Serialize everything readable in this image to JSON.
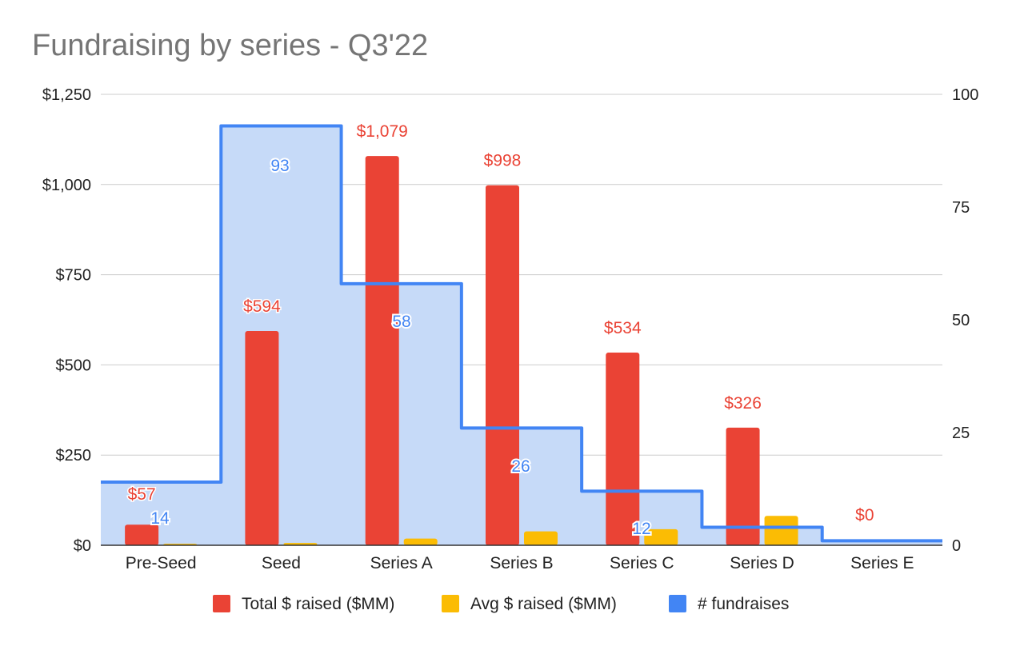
{
  "chart_data": {
    "type": "bar",
    "title": "Fundraising by series - Q3'22",
    "categories": [
      "Pre-Seed",
      "Seed",
      "Series A",
      "Series B",
      "Series C",
      "Series D",
      "Series E"
    ],
    "series": [
      {
        "name": "Total $ raised ($MM)",
        "type": "bar",
        "axis": "left",
        "color": "#EA4335",
        "values": [
          57,
          594,
          1079,
          998,
          534,
          326,
          0
        ],
        "data_labels": [
          "$57",
          "$594",
          "$1,079",
          "$998",
          "$534",
          "$326",
          "$0"
        ]
      },
      {
        "name": "Avg $ raised ($MM)",
        "type": "bar",
        "axis": "left",
        "color": "#FBBC04",
        "values": [
          4.1,
          6.4,
          18.6,
          38.4,
          44.5,
          81.5,
          0
        ]
      },
      {
        "name": "# fundraises",
        "type": "stepped-area",
        "axis": "right",
        "color": "#4285F4",
        "fill": "#C6DAF8",
        "values": [
          14,
          93,
          58,
          26,
          12,
          4,
          1
        ],
        "data_labels": [
          "14",
          "93",
          "58",
          "26",
          "12",
          "",
          ""
        ]
      }
    ],
    "left_axis": {
      "min": 0,
      "max": 1250,
      "ticks": [
        0,
        250,
        500,
        750,
        1000,
        1250
      ],
      "tick_labels": [
        "$0",
        "$250",
        "$500",
        "$750",
        "$1,000",
        "$1,250"
      ]
    },
    "right_axis": {
      "min": 0,
      "max": 100,
      "ticks": [
        0,
        25,
        50,
        75,
        100
      ],
      "tick_labels": [
        "0",
        "25",
        "50",
        "75",
        "100"
      ]
    },
    "grid": true,
    "legend_position": "bottom"
  }
}
